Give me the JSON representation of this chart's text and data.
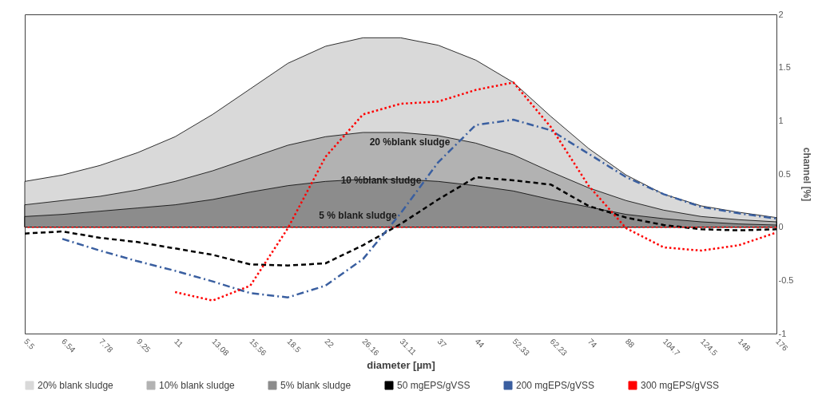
{
  "chart_data": {
    "type": "area",
    "xlabel": "diameter [µm]",
    "ylabel": "channel [%]",
    "categories": [
      "5.5",
      "6.54",
      "7.78",
      "9.25",
      "11",
      "13.08",
      "15.56",
      "18.5",
      "22",
      "26.16",
      "31.11",
      "37",
      "44",
      "52.33",
      "62.23",
      "74",
      "88",
      "104.7",
      "124.5",
      "148",
      "176"
    ],
    "series": [
      {
        "name": "20% blank sludge",
        "color": "#d9d9d9",
        "values": [
          0.43,
          0.49,
          0.58,
          0.7,
          0.85,
          1.06,
          1.3,
          1.54,
          1.7,
          1.78,
          1.78,
          1.71,
          1.57,
          1.36,
          1.04,
          0.74,
          0.49,
          0.31,
          0.2,
          0.14,
          0.09
        ]
      },
      {
        "name": "10% blank sludge",
        "color": "#b2b2b2",
        "values": [
          0.21,
          0.25,
          0.29,
          0.35,
          0.43,
          0.53,
          0.65,
          0.77,
          0.85,
          0.89,
          0.89,
          0.86,
          0.79,
          0.68,
          0.52,
          0.37,
          0.25,
          0.16,
          0.1,
          0.07,
          0.05
        ]
      },
      {
        "name": "5% blank sludge",
        "color": "#8c8c8c",
        "values": [
          0.1,
          0.12,
          0.15,
          0.18,
          0.21,
          0.26,
          0.33,
          0.39,
          0.43,
          0.45,
          0.45,
          0.43,
          0.39,
          0.34,
          0.26,
          0.19,
          0.12,
          0.08,
          0.05,
          0.03,
          0.02
        ]
      },
      {
        "name": "50 mgEPS/gVSS",
        "type": "line",
        "line_style": "dashed",
        "color": "#000000",
        "values": [
          -0.06,
          -0.04,
          -0.1,
          -0.14,
          -0.2,
          -0.26,
          -0.35,
          -0.36,
          -0.34,
          -0.17,
          0.03,
          0.26,
          0.47,
          0.44,
          0.4,
          0.2,
          0.09,
          0.02,
          -0.02,
          -0.03,
          -0.02
        ]
      },
      {
        "name": "200 mgEPS/gVSS",
        "type": "line",
        "line_style": "dashdot",
        "color": "#3a5fa0",
        "values": [
          null,
          -0.11,
          -0.22,
          -0.32,
          -0.41,
          -0.51,
          -0.62,
          -0.66,
          -0.55,
          -0.3,
          0.13,
          0.61,
          0.96,
          1.01,
          0.91,
          0.69,
          0.47,
          0.31,
          0.19,
          0.13,
          0.08
        ]
      },
      {
        "name": "300 mgEPS/gVSS",
        "type": "line",
        "line_style": "dotted",
        "color": "#ff0000",
        "values": [
          null,
          null,
          null,
          null,
          -0.61,
          -0.69,
          -0.55,
          -0.01,
          0.66,
          1.06,
          1.16,
          1.18,
          1.29,
          1.36,
          0.94,
          0.39,
          -0.01,
          -0.19,
          -0.22,
          -0.17,
          -0.05
        ]
      }
    ],
    "ylim": [
      -1,
      2
    ],
    "yticks": [
      -1,
      -0.5,
      0,
      0.5,
      1,
      1.5,
      2
    ],
    "ref_lines": [
      {
        "axis": "y",
        "value": 0,
        "color": "#ff0000",
        "line_style": "dotted"
      }
    ],
    "annotations": [
      "20 %blank sludge",
      "10 %blank sludge",
      "5 % blank sludge"
    ],
    "legend": "bottom",
    "grid": false,
    "marker": "none"
  }
}
